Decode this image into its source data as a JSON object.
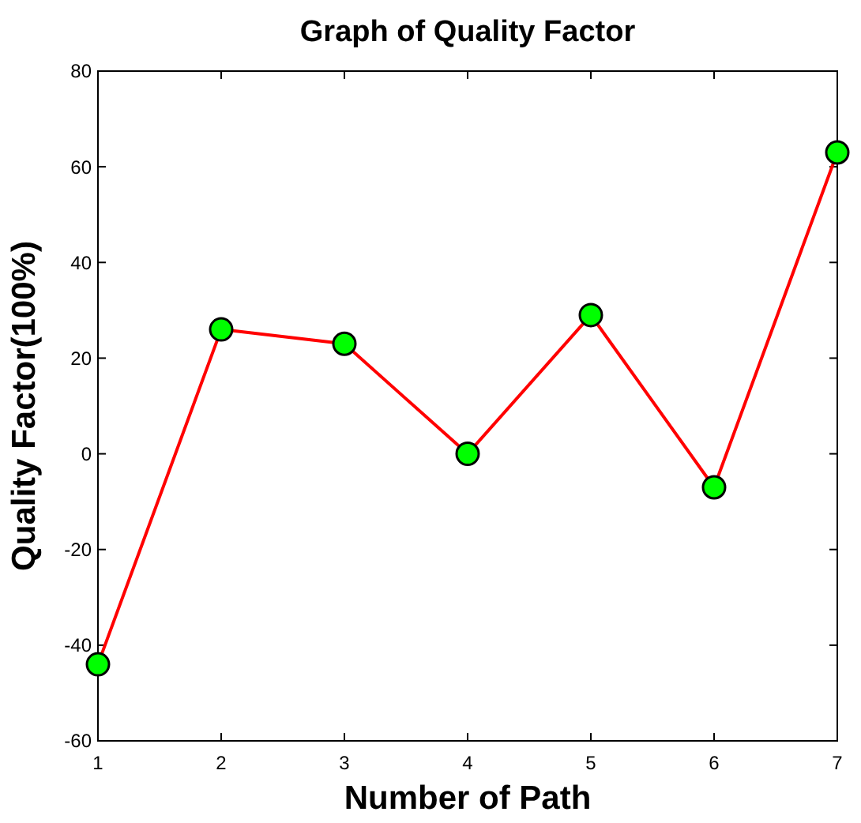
{
  "chart_data": {
    "type": "line",
    "title": "Graph of Quality Factor",
    "xlabel": "Number of Path",
    "ylabel": "Quality Factor(100%)",
    "x": [
      1,
      2,
      3,
      4,
      5,
      6,
      7
    ],
    "series": [
      {
        "color": "#ff0000",
        "values": [
          -44,
          26,
          23,
          0,
          29,
          -7,
          63
        ]
      }
    ],
    "xlim": [
      1,
      7
    ],
    "xticks": [
      1,
      2,
      3,
      4,
      5,
      6,
      7
    ],
    "ylim": [
      -60,
      80
    ],
    "yticks": [
      -60,
      -40,
      -20,
      0,
      20,
      40,
      60,
      80
    ],
    "grid": false,
    "marker": "circle",
    "line_style": "solid"
  }
}
